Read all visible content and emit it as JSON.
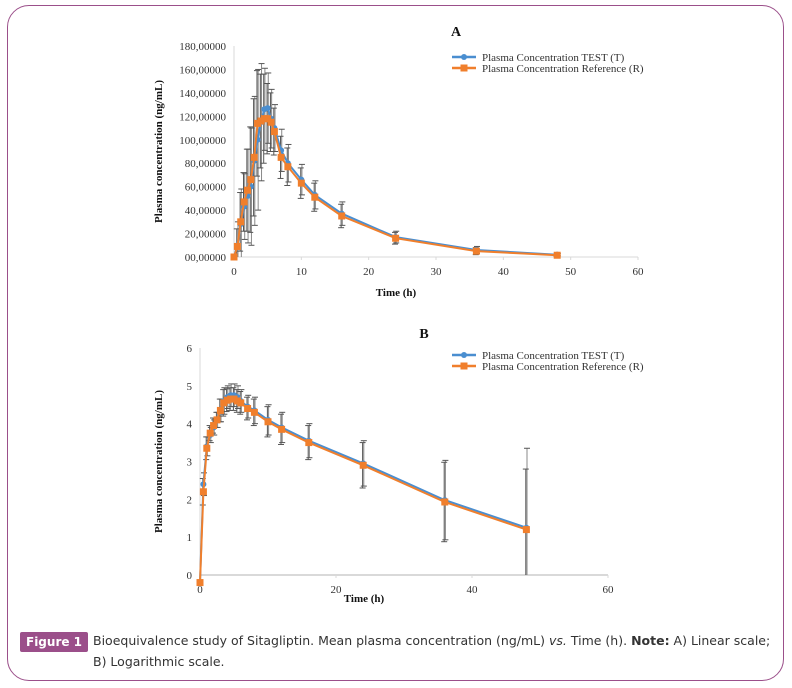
{
  "figure": {
    "badge": "Figure 1",
    "caption_main": "Bioequivalence study of Sitagliptin. Mean plasma concentration (ng/mL) ",
    "caption_vs": "vs.",
    "caption_after_vs": " Time (h). ",
    "caption_note_label": "Note:",
    "caption_note_text": " A) Linear scale; B) Logarithmic scale.",
    "frame_color": "#9b4f8a"
  },
  "colors": {
    "test": "#4a8ed0",
    "reference": "#f07f2c",
    "error": "#666666"
  },
  "chart_data": [
    {
      "type": "line",
      "panel": "A",
      "title": "A",
      "xlabel": "Time (h)",
      "ylabel": "Plasma concentration (ng/mL)",
      "xlim": [
        0,
        60
      ],
      "ylim": [
        0,
        180
      ],
      "xticks": [
        "0",
        "10",
        "20",
        "30",
        "40",
        "50",
        "60"
      ],
      "yticks": [
        "00,00000",
        "20,00000",
        "40,00000",
        "60,00000",
        "80,00000",
        "100,00000",
        "120,00000",
        "140,00000",
        "160,00000",
        "180,00000"
      ],
      "legend": [
        "Plasma Concentration TEST (T)",
        "Plasma Concentration Reference (R)"
      ],
      "legend_position": "top-right",
      "x": [
        0,
        0.5,
        1,
        1.5,
        2,
        2.5,
        3,
        3.5,
        4,
        4.5,
        5,
        5.5,
        6,
        7,
        8,
        10,
        12,
        16,
        24,
        36,
        48
      ],
      "series": [
        {
          "name": "Plasma Concentration TEST (T)",
          "values": [
            0,
            10,
            28,
            43,
            52,
            60,
            82,
            100,
            115,
            126,
            127,
            118,
            110,
            91,
            80,
            66,
            53,
            37,
            17,
            6,
            2
          ],
          "errors": [
            0,
            20,
            30,
            28,
            40,
            50,
            55,
            60,
            50,
            35,
            30,
            25,
            20,
            18,
            16,
            13,
            12,
            10,
            5,
            3,
            1
          ]
        },
        {
          "name": "Plasma Concentration Reference (R)",
          "values": [
            0,
            9,
            30,
            47,
            57,
            66,
            85,
            114,
            116,
            118,
            118,
            115,
            107,
            85,
            77,
            63,
            51,
            35,
            16,
            5,
            1.5
          ],
          "errors": [
            0,
            15,
            25,
            25,
            35,
            45,
            50,
            45,
            40,
            38,
            30,
            25,
            20,
            18,
            16,
            13,
            12,
            10,
            5,
            3,
            1
          ]
        }
      ]
    },
    {
      "type": "line",
      "panel": "B",
      "title": "B",
      "xlabel": "Time (h)",
      "ylabel": "Plasma concentration (ng/mL)",
      "xlim": [
        0,
        60
      ],
      "ylim": [
        0,
        6
      ],
      "xticks": [
        "0",
        "20",
        "40",
        "60"
      ],
      "yticks": [
        "0",
        "1",
        "2",
        "3",
        "4",
        "5",
        "6"
      ],
      "legend": [
        "Plasma Concentration TEST (T)",
        "Plasma Concentration Reference (R)"
      ],
      "legend_position": "top-right",
      "x": [
        0,
        0.5,
        1,
        1.5,
        2,
        2.5,
        3,
        3.5,
        4,
        4.5,
        5,
        5.5,
        6,
        7,
        8,
        10,
        12,
        16,
        24,
        36,
        48
      ],
      "series": [
        {
          "name": "Plasma Concentration TEST (T)",
          "values": [
            -0.2,
            2.4,
            3.4,
            3.7,
            3.9,
            4.1,
            4.35,
            4.6,
            4.7,
            4.75,
            4.75,
            4.7,
            4.6,
            4.45,
            4.35,
            4.1,
            3.9,
            3.55,
            2.95,
            1.98,
            1.25
          ],
          "errors": [
            0,
            0.3,
            0.25,
            0.2,
            0.2,
            0.2,
            0.3,
            0.35,
            0.3,
            0.3,
            0.3,
            0.3,
            0.3,
            0.3,
            0.35,
            0.4,
            0.4,
            0.45,
            0.6,
            1.05,
            2.1
          ]
        },
        {
          "name": "Plasma Concentration Reference (R)",
          "values": [
            -0.2,
            2.2,
            3.35,
            3.75,
            3.95,
            4.1,
            4.35,
            4.55,
            4.62,
            4.65,
            4.65,
            4.6,
            4.55,
            4.4,
            4.3,
            4.05,
            3.85,
            3.5,
            2.9,
            1.93,
            1.2
          ],
          "errors": [
            0,
            0.35,
            0.3,
            0.2,
            0.2,
            0.2,
            0.3,
            0.35,
            0.3,
            0.3,
            0.3,
            0.3,
            0.3,
            0.3,
            0.35,
            0.4,
            0.4,
            0.45,
            0.6,
            1.05,
            1.6
          ]
        }
      ]
    }
  ]
}
